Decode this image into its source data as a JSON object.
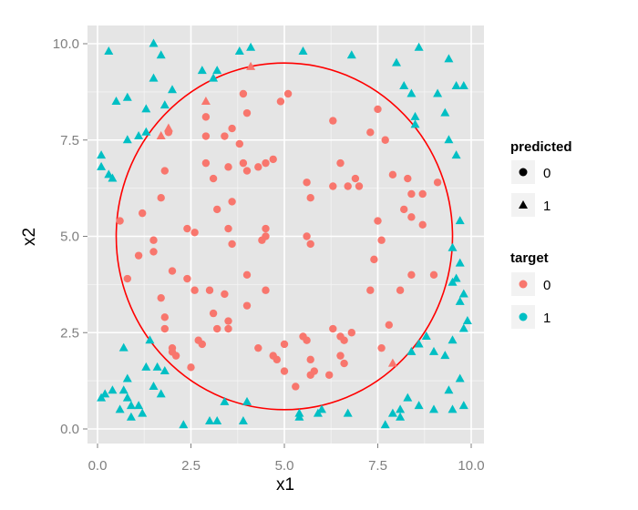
{
  "chart_data": {
    "type": "scatter",
    "title": "",
    "xlabel": "x1",
    "ylabel": "x2",
    "xlim": [
      0,
      10
    ],
    "ylim": [
      0,
      10
    ],
    "xticks": [
      "0.0",
      "2.5",
      "5.0",
      "7.5",
      "10.0"
    ],
    "yticks": [
      "0.0",
      "2.5",
      "5.0",
      "7.5",
      "10.0"
    ],
    "xtick_values": [
      0,
      2.5,
      5,
      7.5,
      10
    ],
    "ytick_values": [
      0,
      2.5,
      5,
      7.5,
      10
    ],
    "grid": true,
    "decision_boundary": {
      "shape": "circle",
      "center": [
        5,
        5
      ],
      "radius": 4.5,
      "color": "#ff0000"
    },
    "legend_position": "right",
    "legends": [
      {
        "title": "predicted",
        "entries": [
          {
            "label": "0",
            "shape": "circle"
          },
          {
            "label": "1",
            "shape": "triangle"
          }
        ]
      },
      {
        "title": "target",
        "entries": [
          {
            "label": "0",
            "color": "#f8766d"
          },
          {
            "label": "1",
            "color": "#00bfc4"
          }
        ]
      }
    ],
    "colors": {
      "target_0": "#f8766d",
      "target_1": "#00bfc4",
      "panel": "#e5e5e5",
      "grid": "#ffffff"
    },
    "series": [
      {
        "name": "target 0, predicted 0",
        "points": [
          [
            2.9,
            8.1
          ],
          [
            2.9,
            7.6
          ],
          [
            3.4,
            7.6
          ],
          [
            3.5,
            6.8
          ],
          [
            3.8,
            7.4
          ],
          [
            3.9,
            6.9
          ],
          [
            4.0,
            6.7
          ],
          [
            4.3,
            6.8
          ],
          [
            4.5,
            6.9
          ],
          [
            4.7,
            7.0
          ],
          [
            3.9,
            8.7
          ],
          [
            4.0,
            8.2
          ],
          [
            4.9,
            8.5
          ],
          [
            5.1,
            8.7
          ],
          [
            3.1,
            6.5
          ],
          [
            2.9,
            6.9
          ],
          [
            1.8,
            6.7
          ],
          [
            1.9,
            7.7
          ],
          [
            1.7,
            6.0
          ],
          [
            1.2,
            5.6
          ],
          [
            0.6,
            5.4
          ],
          [
            1.1,
            4.5
          ],
          [
            1.5,
            4.9
          ],
          [
            1.5,
            4.6
          ],
          [
            1.7,
            3.4
          ],
          [
            2.0,
            4.1
          ],
          [
            1.8,
            2.9
          ],
          [
            1.8,
            2.6
          ],
          [
            0.8,
            3.9
          ],
          [
            2.4,
            5.2
          ],
          [
            2.6,
            5.1
          ],
          [
            2.4,
            3.9
          ],
          [
            2.6,
            3.6
          ],
          [
            3.0,
            3.6
          ],
          [
            3.2,
            5.7
          ],
          [
            3.5,
            5.2
          ],
          [
            3.6,
            5.9
          ],
          [
            3.6,
            4.8
          ],
          [
            3.4,
            3.5
          ],
          [
            3.1,
            3.0
          ],
          [
            3.2,
            2.6
          ],
          [
            3.5,
            2.8
          ],
          [
            3.5,
            2.6
          ],
          [
            2.7,
            2.3
          ],
          [
            2.8,
            2.2
          ],
          [
            2.0,
            2.1
          ],
          [
            2.0,
            2.0
          ],
          [
            2.1,
            1.9
          ],
          [
            2.5,
            1.6
          ],
          [
            3.6,
            7.8
          ],
          [
            4.0,
            3.2
          ],
          [
            4.0,
            4.0
          ],
          [
            4.4,
            4.9
          ],
          [
            4.5,
            5.0
          ],
          [
            4.5,
            5.2
          ],
          [
            4.5,
            3.6
          ],
          [
            4.3,
            2.1
          ],
          [
            4.7,
            1.9
          ],
          [
            4.8,
            1.8
          ],
          [
            5.0,
            2.2
          ],
          [
            5.0,
            1.5
          ],
          [
            5.3,
            1.1
          ],
          [
            5.5,
            2.4
          ],
          [
            5.6,
            2.3
          ],
          [
            5.7,
            1.8
          ],
          [
            5.7,
            1.4
          ],
          [
            5.8,
            1.5
          ],
          [
            5.6,
            6.4
          ],
          [
            5.7,
            6.0
          ],
          [
            5.6,
            5.0
          ],
          [
            5.7,
            4.8
          ],
          [
            6.3,
            8.0
          ],
          [
            6.3,
            6.3
          ],
          [
            6.5,
            6.9
          ],
          [
            6.7,
            6.3
          ],
          [
            6.9,
            6.5
          ],
          [
            7.0,
            6.3
          ],
          [
            6.3,
            2.6
          ],
          [
            6.5,
            2.4
          ],
          [
            6.6,
            2.3
          ],
          [
            6.8,
            2.5
          ],
          [
            6.5,
            1.9
          ],
          [
            6.6,
            1.7
          ],
          [
            6.2,
            1.4
          ],
          [
            7.3,
            7.7
          ],
          [
            7.5,
            8.3
          ],
          [
            7.7,
            7.5
          ],
          [
            7.9,
            6.6
          ],
          [
            8.3,
            6.5
          ],
          [
            8.4,
            6.1
          ],
          [
            8.7,
            6.1
          ],
          [
            8.4,
            5.5
          ],
          [
            8.7,
            5.3
          ],
          [
            8.2,
            5.7
          ],
          [
            7.5,
            5.4
          ],
          [
            7.6,
            4.9
          ],
          [
            7.4,
            4.4
          ],
          [
            7.3,
            3.6
          ],
          [
            8.1,
            3.6
          ],
          [
            8.4,
            4.0
          ],
          [
            9.0,
            4.0
          ],
          [
            7.8,
            2.7
          ],
          [
            7.6,
            2.1
          ],
          [
            9.1,
            6.4
          ]
        ]
      },
      {
        "name": "target 0, predicted 1",
        "points": [
          [
            2.9,
            8.5
          ],
          [
            4.1,
            9.4
          ],
          [
            1.9,
            7.8
          ],
          [
            1.7,
            7.6
          ],
          [
            7.9,
            1.7
          ]
        ]
      },
      {
        "name": "target 1, predicted 1",
        "points": [
          [
            0.3,
            9.8
          ],
          [
            1.5,
            10.0
          ],
          [
            1.5,
            9.1
          ],
          [
            1.7,
            9.7
          ],
          [
            2.0,
            8.8
          ],
          [
            1.8,
            8.4
          ],
          [
            2.8,
            9.3
          ],
          [
            3.2,
            9.3
          ],
          [
            3.1,
            9.1
          ],
          [
            3.8,
            9.8
          ],
          [
            4.1,
            9.9
          ],
          [
            5.5,
            9.8
          ],
          [
            6.8,
            9.7
          ],
          [
            8.0,
            9.5
          ],
          [
            8.6,
            9.9
          ],
          [
            9.4,
            9.6
          ],
          [
            8.2,
            8.9
          ],
          [
            8.4,
            8.7
          ],
          [
            9.1,
            8.7
          ],
          [
            9.6,
            8.9
          ],
          [
            9.8,
            8.9
          ],
          [
            9.3,
            8.2
          ],
          [
            8.5,
            8.1
          ],
          [
            8.5,
            7.9
          ],
          [
            9.4,
            7.5
          ],
          [
            9.6,
            7.1
          ],
          [
            0.5,
            8.5
          ],
          [
            0.8,
            8.6
          ],
          [
            1.3,
            8.3
          ],
          [
            0.8,
            7.5
          ],
          [
            1.1,
            7.6
          ],
          [
            1.3,
            7.7
          ],
          [
            0.1,
            7.1
          ],
          [
            0.1,
            6.8
          ],
          [
            0.3,
            6.6
          ],
          [
            0.4,
            6.5
          ],
          [
            9.7,
            5.4
          ],
          [
            9.5,
            4.7
          ],
          [
            9.7,
            4.3
          ],
          [
            9.6,
            3.9
          ],
          [
            9.5,
            3.8
          ],
          [
            9.8,
            3.5
          ],
          [
            9.7,
            3.3
          ],
          [
            9.9,
            2.8
          ],
          [
            9.8,
            2.6
          ],
          [
            9.5,
            2.3
          ],
          [
            8.8,
            2.4
          ],
          [
            8.6,
            2.2
          ],
          [
            9.0,
            2.0
          ],
          [
            9.3,
            1.9
          ],
          [
            8.4,
            2.0
          ],
          [
            8.1,
            0.5
          ],
          [
            8.3,
            0.8
          ],
          [
            8.6,
            0.6
          ],
          [
            9.0,
            0.5
          ],
          [
            9.5,
            0.5
          ],
          [
            9.4,
            1.0
          ],
          [
            9.7,
            1.3
          ],
          [
            9.8,
            0.6
          ],
          [
            7.7,
            0.1
          ],
          [
            7.9,
            0.4
          ],
          [
            8.1,
            0.3
          ],
          [
            6.7,
            0.4
          ],
          [
            6.0,
            0.5
          ],
          [
            5.9,
            0.4
          ],
          [
            4.0,
            0.7
          ],
          [
            3.4,
            0.7
          ],
          [
            3.0,
            0.2
          ],
          [
            3.2,
            0.2
          ],
          [
            3.9,
            0.2
          ],
          [
            2.3,
            0.1
          ],
          [
            0.7,
            2.1
          ],
          [
            1.3,
            1.6
          ],
          [
            1.4,
            2.3
          ],
          [
            1.6,
            1.6
          ],
          [
            1.5,
            1.1
          ],
          [
            1.7,
            0.9
          ],
          [
            1.8,
            1.5
          ],
          [
            0.8,
            1.3
          ],
          [
            0.7,
            1.0
          ],
          [
            0.8,
            0.8
          ],
          [
            0.9,
            0.6
          ],
          [
            0.6,
            0.5
          ],
          [
            1.1,
            0.6
          ],
          [
            1.2,
            0.4
          ],
          [
            0.9,
            0.3
          ],
          [
            0.1,
            0.8
          ],
          [
            0.2,
            0.9
          ],
          [
            0.4,
            1.0
          ],
          [
            5.4,
            0.4
          ],
          [
            5.4,
            0.3
          ]
        ]
      }
    ]
  }
}
